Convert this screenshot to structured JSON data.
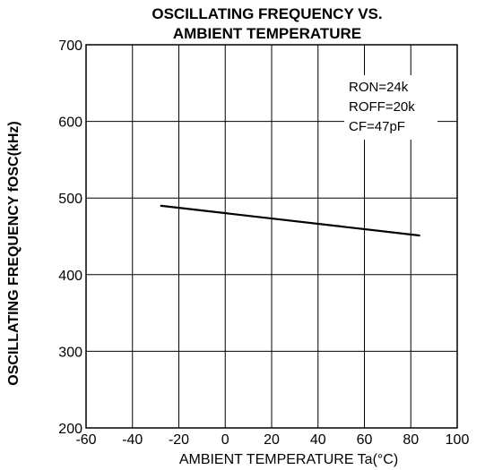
{
  "chart_data": {
    "type": "line",
    "title_lines": [
      "OSCILLATING FREQUENCY VS.",
      "AMBIENT TEMPERATURE"
    ],
    "xlabel": "AMBIENT TEMPERATURE Ta(°C)",
    "ylabel": "OSCILLATING FREQUENCY fOSC(kHz)",
    "xlim": [
      -60,
      100
    ],
    "ylim": [
      200,
      700
    ],
    "x_ticks": [
      -60,
      -40,
      -20,
      0,
      20,
      40,
      60,
      80,
      100
    ],
    "y_ticks": [
      200,
      300,
      400,
      500,
      600,
      700
    ],
    "grid": true,
    "series": [
      {
        "x": [
          -28,
          84
        ],
        "y": [
          490,
          451
        ]
      }
    ],
    "conditions": [
      "RON=24k",
      "ROFF=20k",
      "CF=47pF"
    ],
    "line_color": "#000000"
  }
}
